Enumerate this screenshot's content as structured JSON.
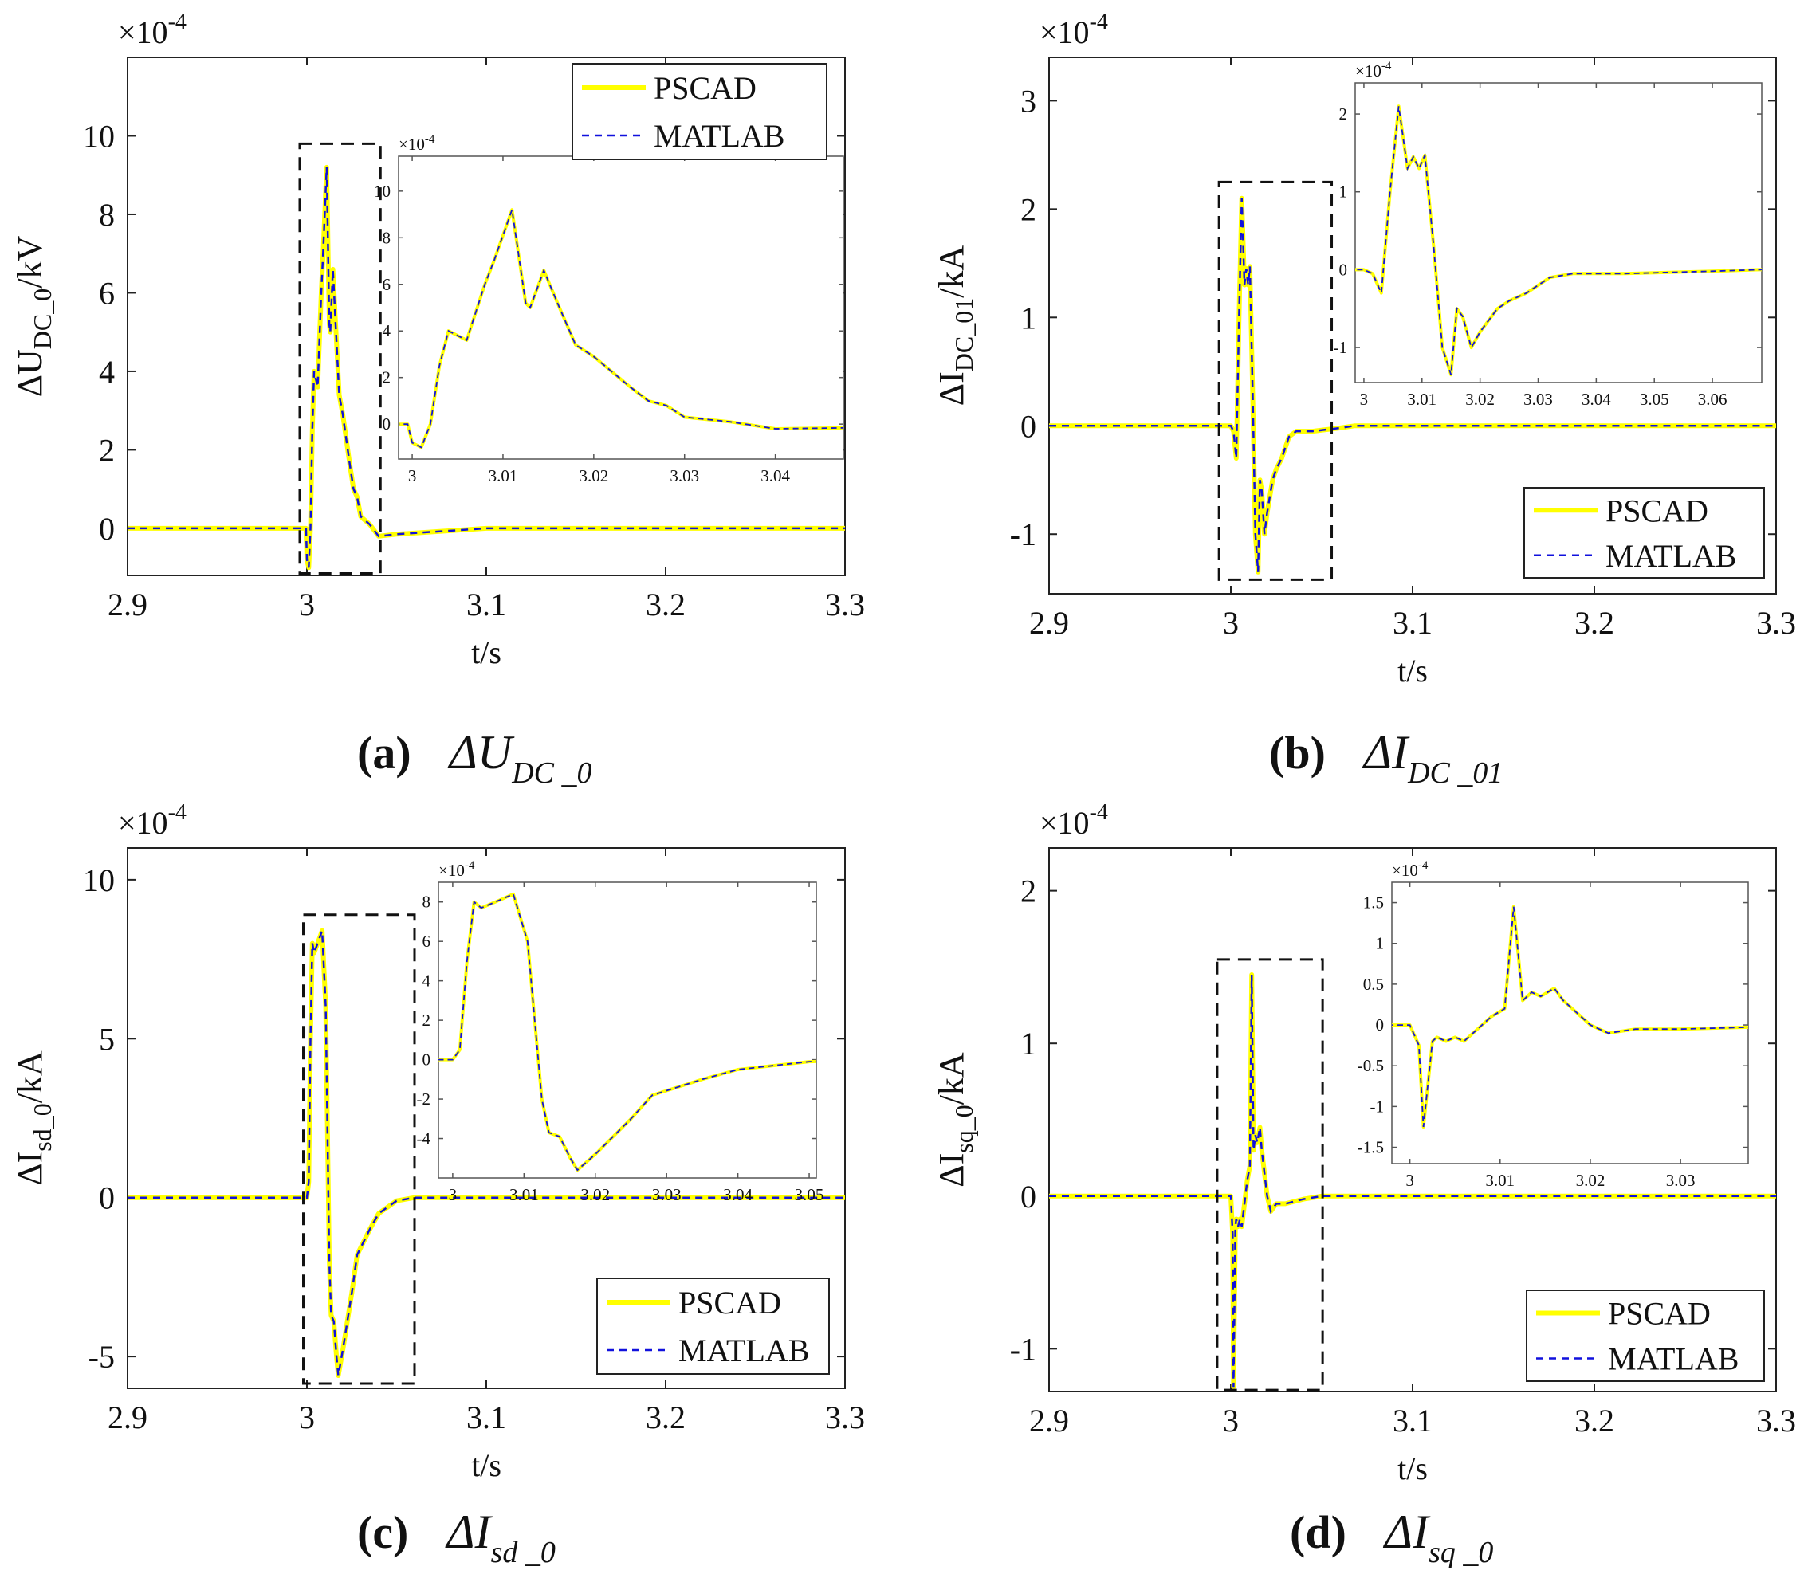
{
  "figure": {
    "captions": [
      {
        "label": "(a)",
        "symbol": "ΔU",
        "subscript": "DC _0"
      },
      {
        "label": "(b)",
        "symbol": "ΔI",
        "subscript": "DC _01"
      },
      {
        "label": "(c)",
        "symbol": "ΔI",
        "subscript": "sd _0"
      },
      {
        "label": "(d)",
        "symbol": "ΔI",
        "subscript": "sq _0"
      }
    ],
    "colors": {
      "pscad": "#ffff00",
      "matlab": "#1111dd",
      "axis": "#222222",
      "box": "#111111"
    }
  },
  "chart_data": [
    {
      "id": "a",
      "type": "line",
      "title": "",
      "xlabel": "t/s",
      "ylabel_main": "ΔU",
      "ylabel_sub": "DC_0",
      "ylabel_unit": "/kV",
      "exponent_label": "×10",
      "exponent_power": "-4",
      "xlim": [
        2.9,
        3.3
      ],
      "ylim": [
        -1.2,
        12
      ],
      "xticks": [
        2.9,
        3.0,
        3.1,
        3.2,
        3.3
      ],
      "xtick_labels": [
        "2.9",
        "3",
        "3.1",
        "3.2",
        "3.3"
      ],
      "yticks": [
        0,
        2,
        4,
        6,
        8,
        10
      ],
      "ytick_labels": [
        "0",
        "2",
        "4",
        "6",
        "8",
        "10"
      ],
      "legend": {
        "position": "top-right",
        "entries": [
          "PSCAD",
          "MATLAB"
        ]
      },
      "box_region": {
        "x": [
          2.996,
          3.041
        ],
        "y": [
          -1.15,
          9.8
        ]
      },
      "series": [
        {
          "name": "PSCAD",
          "x": [
            2.9,
            2.995,
            2.9995,
            3.0,
            3.001,
            3.002,
            3.003,
            3.004,
            3.006,
            3.008,
            3.009,
            3.011,
            3.0125,
            3.013,
            3.0145,
            3.016,
            3.018,
            3.02,
            3.024,
            3.026,
            3.028,
            3.03,
            3.035,
            3.04,
            3.05,
            3.1,
            3.2,
            3.3
          ],
          "y": [
            0,
            0,
            0,
            -0.8,
            -1.0,
            0,
            2.5,
            4.0,
            3.6,
            6.0,
            7.0,
            9.2,
            5.2,
            5.0,
            6.6,
            5.2,
            3.4,
            2.9,
            1.6,
            1.0,
            0.8,
            0.3,
            0.1,
            -0.2,
            -0.15,
            0,
            0,
            0
          ]
        },
        {
          "name": "MATLAB",
          "x": [
            2.9,
            2.995,
            2.9995,
            3.0,
            3.001,
            3.002,
            3.003,
            3.004,
            3.006,
            3.008,
            3.009,
            3.011,
            3.0125,
            3.013,
            3.0145,
            3.016,
            3.018,
            3.02,
            3.024,
            3.026,
            3.028,
            3.03,
            3.035,
            3.04,
            3.05,
            3.1,
            3.2,
            3.3
          ],
          "y": [
            0,
            0,
            0,
            -0.8,
            -1.0,
            0,
            2.5,
            4.0,
            3.6,
            6.0,
            7.0,
            9.2,
            5.2,
            5.0,
            6.6,
            5.2,
            3.4,
            2.9,
            1.6,
            1.0,
            0.8,
            0.3,
            0.1,
            -0.2,
            -0.15,
            0,
            0,
            0
          ]
        }
      ],
      "inset": {
        "exponent_label": "×10",
        "exponent_power": "-4",
        "xlim": [
          2.9985,
          3.0475
        ],
        "ylim": [
          -1.5,
          11.5
        ],
        "xticks": [
          3.0,
          3.01,
          3.02,
          3.03,
          3.04
        ],
        "xtick_labels": [
          "3",
          "3.01",
          "3.02",
          "3.03",
          "3.04"
        ],
        "yticks": [
          0,
          2,
          4,
          6,
          8,
          10
        ],
        "ytick_labels": [
          "0",
          "2",
          "4",
          "6",
          "8",
          "10"
        ]
      }
    },
    {
      "id": "b",
      "type": "line",
      "title": "",
      "xlabel": "t/s",
      "ylabel_main": "ΔI",
      "ylabel_sub": "DC_01",
      "ylabel_unit": "/kA",
      "exponent_label": "×10",
      "exponent_power": "-4",
      "xlim": [
        2.9,
        3.3
      ],
      "ylim": [
        -1.55,
        3.4
      ],
      "xticks": [
        2.9,
        3.0,
        3.1,
        3.2,
        3.3
      ],
      "xtick_labels": [
        "2.9",
        "3",
        "3.1",
        "3.2",
        "3.3"
      ],
      "yticks": [
        -1,
        0,
        1,
        2,
        3
      ],
      "ytick_labels": [
        "-1",
        "0",
        "1",
        "2",
        "3"
      ],
      "legend": {
        "position": "bottom-right",
        "entries": [
          "PSCAD",
          "MATLAB"
        ]
      },
      "box_region": {
        "x": [
          2.9935,
          3.0555
        ],
        "y": [
          -1.42,
          2.25
        ]
      },
      "series": [
        {
          "name": "PSCAD",
          "x": [
            2.9,
            2.998,
            3.0,
            3.0015,
            3.003,
            3.0045,
            3.006,
            3.0075,
            3.0085,
            3.0095,
            3.0105,
            3.012,
            3.0135,
            3.015,
            3.016,
            3.017,
            3.0185,
            3.02,
            3.023,
            3.025,
            3.028,
            3.032,
            3.036,
            3.045,
            3.06,
            3.068,
            3.1,
            3.2,
            3.3
          ],
          "y": [
            0,
            0,
            0,
            -0.05,
            -0.3,
            1.0,
            2.1,
            1.3,
            1.45,
            1.3,
            1.47,
            0.3,
            -1.0,
            -1.35,
            -0.5,
            -0.6,
            -1.0,
            -0.8,
            -0.5,
            -0.4,
            -0.3,
            -0.1,
            -0.05,
            -0.05,
            -0.02,
            0,
            0,
            0,
            0
          ]
        },
        {
          "name": "MATLAB",
          "x": [
            2.9,
            2.998,
            3.0,
            3.0015,
            3.003,
            3.0045,
            3.006,
            3.0075,
            3.0085,
            3.0095,
            3.0105,
            3.012,
            3.0135,
            3.015,
            3.016,
            3.017,
            3.0185,
            3.02,
            3.023,
            3.025,
            3.028,
            3.032,
            3.036,
            3.045,
            3.06,
            3.068,
            3.1,
            3.2,
            3.3
          ],
          "y": [
            0,
            0,
            0,
            -0.05,
            -0.3,
            1.0,
            2.1,
            1.3,
            1.45,
            1.3,
            1.47,
            0.3,
            -1.0,
            -1.35,
            -0.5,
            -0.6,
            -1.0,
            -0.8,
            -0.5,
            -0.4,
            -0.3,
            -0.1,
            -0.05,
            -0.05,
            -0.02,
            0,
            0,
            0,
            0
          ]
        }
      ],
      "inset": {
        "exponent_label": "×10",
        "exponent_power": "-4",
        "xlim": [
          2.9985,
          3.0685
        ],
        "ylim": [
          -1.45,
          2.4
        ],
        "xticks": [
          3.0,
          3.01,
          3.02,
          3.03,
          3.04,
          3.05,
          3.06
        ],
        "xtick_labels": [
          "3",
          "3.01",
          "3.02",
          "3.03",
          "3.04",
          "3.05",
          "3.06"
        ],
        "yticks": [
          -1,
          0,
          1,
          2
        ],
        "ytick_labels": [
          "-1",
          "0",
          "1",
          "2"
        ]
      }
    },
    {
      "id": "c",
      "type": "line",
      "title": "",
      "xlabel": "t/s",
      "ylabel_main": "ΔI",
      "ylabel_sub": "sd_0",
      "ylabel_unit": "/kA",
      "exponent_label": "×10",
      "exponent_power": "-4",
      "xlim": [
        2.9,
        3.3
      ],
      "ylim": [
        -6,
        11
      ],
      "xticks": [
        2.9,
        3.0,
        3.1,
        3.2,
        3.3
      ],
      "xtick_labels": [
        "2.9",
        "3",
        "3.1",
        "3.2",
        "3.3"
      ],
      "yticks": [
        -5,
        0,
        5,
        10
      ],
      "ytick_labels": [
        "-5",
        "0",
        "5",
        "10"
      ],
      "legend": {
        "position": "bottom-right",
        "entries": [
          "PSCAD",
          "MATLAB"
        ]
      },
      "box_region": {
        "x": [
          2.998,
          3.06
        ],
        "y": [
          -5.85,
          8.9
        ]
      },
      "series": [
        {
          "name": "PSCAD",
          "x": [
            2.9,
            2.999,
            3.0,
            3.001,
            3.002,
            3.003,
            3.004,
            3.006,
            3.0085,
            3.0105,
            3.0125,
            3.0135,
            3.015,
            3.0165,
            3.0175,
            3.02,
            3.025,
            3.028,
            3.035,
            3.04,
            3.05,
            3.06,
            3.1,
            3.2,
            3.3
          ],
          "y": [
            0,
            0,
            0,
            0.5,
            5.0,
            8.0,
            7.7,
            8.0,
            8.4,
            6.0,
            -2.0,
            -3.7,
            -3.9,
            -5.0,
            -5.6,
            -4.8,
            -3.0,
            -1.8,
            -1.0,
            -0.5,
            -0.1,
            0,
            0,
            0,
            0
          ]
        },
        {
          "name": "MATLAB",
          "x": [
            2.9,
            2.999,
            3.0,
            3.001,
            3.002,
            3.003,
            3.004,
            3.006,
            3.0085,
            3.0105,
            3.0125,
            3.0135,
            3.015,
            3.0165,
            3.0175,
            3.02,
            3.025,
            3.028,
            3.035,
            3.04,
            3.05,
            3.06,
            3.1,
            3.2,
            3.3
          ],
          "y": [
            0,
            0,
            0,
            0.5,
            5.0,
            8.0,
            7.7,
            8.0,
            8.4,
            6.0,
            -2.0,
            -3.7,
            -3.9,
            -5.0,
            -5.6,
            -4.8,
            -3.0,
            -1.8,
            -1.0,
            -0.5,
            -0.1,
            0,
            0,
            0,
            0
          ]
        }
      ],
      "inset": {
        "exponent_label": "×10",
        "exponent_power": "-4",
        "xlim": [
          2.998,
          3.051
        ],
        "ylim": [
          -6.0,
          9.0
        ],
        "xticks": [
          3.0,
          3.01,
          3.02,
          3.03,
          3.04,
          3.05
        ],
        "xtick_labels": [
          "3",
          "3.01",
          "3.02",
          "3.03",
          "3.04",
          "3.05"
        ],
        "yticks": [
          -4,
          -2,
          0,
          2,
          4,
          6,
          8
        ],
        "ytick_labels": [
          "-4",
          "-2",
          "0",
          "2",
          "4",
          "6",
          "8"
        ]
      }
    },
    {
      "id": "d",
      "type": "line",
      "title": "",
      "xlabel": "t/s",
      "ylabel_main": "ΔI",
      "ylabel_sub": "sq_0",
      "ylabel_unit": "/kA",
      "exponent_label": "×10",
      "exponent_power": "-4",
      "xlim": [
        2.9,
        3.3
      ],
      "ylim": [
        -1.28,
        2.28
      ],
      "xticks": [
        2.9,
        3.0,
        3.1,
        3.2,
        3.3
      ],
      "xtick_labels": [
        "2.9",
        "3",
        "3.1",
        "3.2",
        "3.3"
      ],
      "yticks": [
        -1,
        0,
        1,
        2
      ],
      "ytick_labels": [
        "-1",
        "0",
        "1",
        "2"
      ],
      "legend": {
        "position": "bottom-right",
        "entries": [
          "PSCAD",
          "MATLAB"
        ]
      },
      "box_region": {
        "x": [
          2.9925,
          3.0505
        ],
        "y": [
          -1.27,
          1.55
        ]
      },
      "series": [
        {
          "name": "PSCAD",
          "x": [
            2.9,
            2.999,
            3.0,
            3.001,
            3.0015,
            3.0025,
            3.003,
            3.004,
            3.005,
            3.006,
            3.007,
            3.009,
            3.0105,
            3.0115,
            3.0125,
            3.0135,
            3.0145,
            3.016,
            3.017,
            3.02,
            3.022,
            3.025,
            3.03,
            3.04,
            3.05,
            3.1,
            3.2,
            3.3
          ],
          "y": [
            0,
            0,
            0,
            -0.25,
            -1.25,
            -0.2,
            -0.15,
            -0.2,
            -0.15,
            -0.2,
            -0.1,
            0.1,
            0.2,
            1.45,
            0.3,
            0.4,
            0.35,
            0.45,
            0.3,
            0.0,
            -0.1,
            -0.05,
            -0.05,
            -0.02,
            0,
            0,
            0,
            0
          ]
        },
        {
          "name": "MATLAB",
          "x": [
            2.9,
            2.999,
            3.0,
            3.001,
            3.0015,
            3.0025,
            3.003,
            3.004,
            3.005,
            3.006,
            3.007,
            3.009,
            3.0105,
            3.0115,
            3.0125,
            3.0135,
            3.0145,
            3.016,
            3.017,
            3.02,
            3.022,
            3.025,
            3.03,
            3.04,
            3.05,
            3.1,
            3.2,
            3.3
          ],
          "y": [
            0,
            0,
            0,
            -0.25,
            -1.25,
            -0.2,
            -0.15,
            -0.2,
            -0.15,
            -0.2,
            -0.1,
            0.1,
            0.2,
            1.45,
            0.3,
            0.4,
            0.35,
            0.45,
            0.3,
            0.0,
            -0.1,
            -0.05,
            -0.05,
            -0.02,
            0,
            0,
            0,
            0
          ]
        }
      ],
      "inset": {
        "exponent_label": "×10",
        "exponent_power": "-4",
        "xlim": [
          2.998,
          3.0375
        ],
        "ylim": [
          -1.7,
          1.75
        ],
        "xticks": [
          3.0,
          3.01,
          3.02,
          3.03
        ],
        "xtick_labels": [
          "3",
          "3.01",
          "3.02",
          "3.03"
        ],
        "yticks": [
          -1.5,
          -1,
          -0.5,
          0,
          0.5,
          1,
          1.5
        ],
        "ytick_labels": [
          "-1.5",
          "-1",
          "-0.5",
          "0",
          "0.5",
          "1",
          "1.5"
        ]
      }
    }
  ]
}
